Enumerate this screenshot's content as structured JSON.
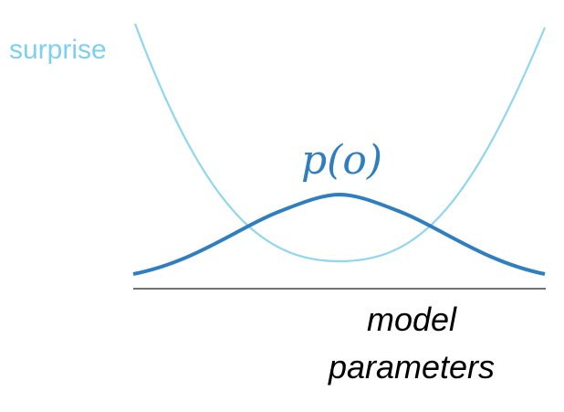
{
  "labels": {
    "surprise": "surprise",
    "probability": "p(o)",
    "axis_line1": "model",
    "axis_line2": "parameters"
  },
  "colors": {
    "surprise_curve": "#8fd6ef",
    "surprise_text": "#7fd0ee",
    "probability_curve": "#2f7fc0",
    "probability_text": "#2f7fc0",
    "axis": "#444444",
    "axis_text": "#000000"
  }
}
